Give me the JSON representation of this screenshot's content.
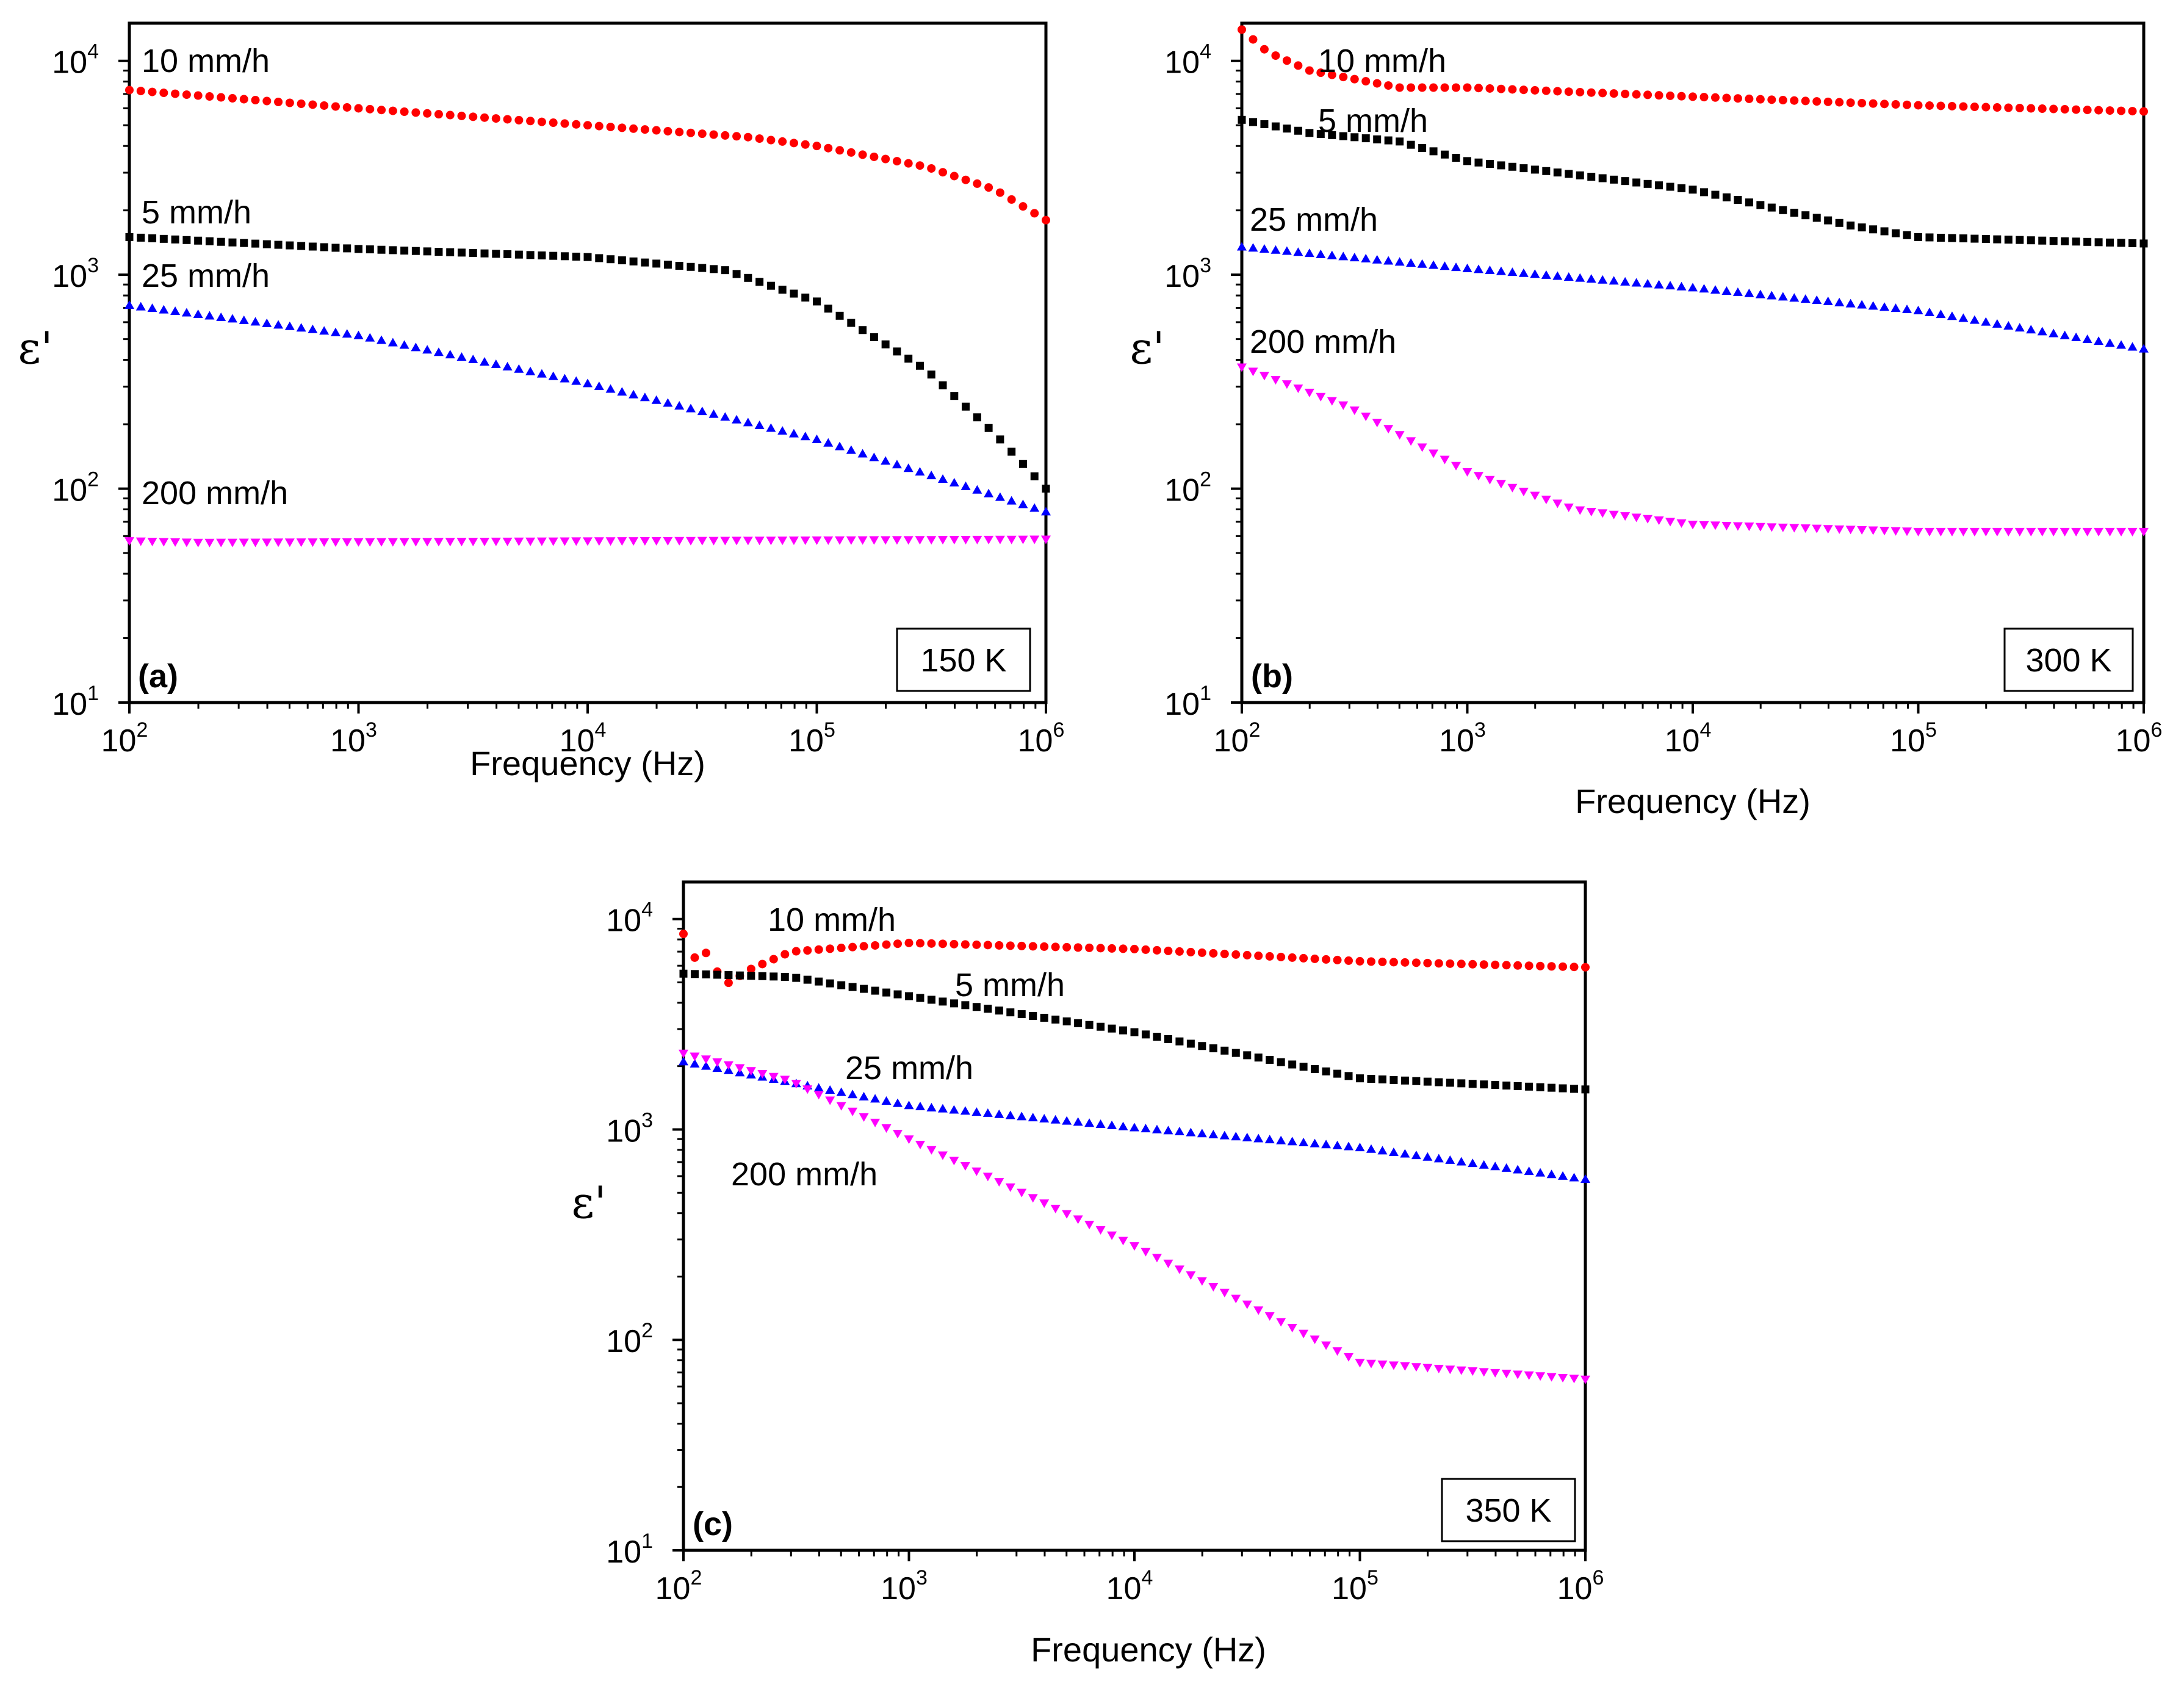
{
  "chart_data": [
    {
      "type": "scatter",
      "panel_label": "(a)",
      "temperature": "150 K",
      "xlabel": "Frequency (Hz)",
      "ylabel": "ε'",
      "xscale": "log",
      "yscale": "log",
      "xlim": [
        100,
        1000000
      ],
      "ylim": [
        10,
        15000
      ],
      "x_ticks": [
        {
          "base": "10",
          "exp": "2"
        },
        {
          "base": "10",
          "exp": "3"
        },
        {
          "base": "10",
          "exp": "4"
        },
        {
          "base": "10",
          "exp": "5"
        },
        {
          "base": "10",
          "exp": "6"
        }
      ],
      "y_ticks": [
        {
          "base": "10",
          "exp": "1"
        },
        {
          "base": "10",
          "exp": "2"
        },
        {
          "base": "10",
          "exp": "3"
        },
        {
          "base": "10",
          "exp": "4"
        }
      ],
      "series": [
        {
          "name": "10 mm/h",
          "color": "#ff0000",
          "marker": "circle",
          "points": [
            [
              100,
              7300
            ],
            [
              1000,
              6000
            ],
            [
              10000,
              5000
            ],
            [
              50000,
              4400
            ],
            [
              100000,
              4000
            ],
            [
              300000,
              3200
            ],
            [
              600000,
              2500
            ],
            [
              1000000,
              1800
            ]
          ]
        },
        {
          "name": "5 mm/h",
          "color": "#000000",
          "marker": "square",
          "points": [
            [
              100,
              1500
            ],
            [
              1000,
              1320
            ],
            [
              10000,
              1210
            ],
            [
              40000,
              1050
            ],
            [
              100000,
              750
            ],
            [
              300000,
              360
            ],
            [
              600000,
              180
            ],
            [
              1000000,
              100
            ]
          ]
        },
        {
          "name": "25 mm/h",
          "color": "#0000ff",
          "marker": "triangle-up",
          "points": [
            [
              100,
              720
            ],
            [
              1000,
              520
            ],
            [
              10000,
              310
            ],
            [
              100000,
              170
            ],
            [
              1000000,
              78
            ]
          ]
        },
        {
          "name": "200 mm/h",
          "color": "#ff00ff",
          "marker": "triangle-down",
          "points": [
            [
              100,
              57
            ],
            [
              200,
              56
            ],
            [
              1000000,
              58
            ]
          ]
        }
      ],
      "series_labels": [
        "10 mm/h",
        "5 mm/h",
        "25 mm/h",
        "200 mm/h"
      ]
    },
    {
      "type": "scatter",
      "panel_label": "(b)",
      "temperature": "300 K",
      "xlabel": "Frequency (Hz)",
      "ylabel": "ε'",
      "xscale": "log",
      "yscale": "log",
      "xlim": [
        100,
        1000000
      ],
      "ylim": [
        10,
        15000
      ],
      "x_ticks": [
        {
          "base": "10",
          "exp": "2"
        },
        {
          "base": "10",
          "exp": "3"
        },
        {
          "base": "10",
          "exp": "4"
        },
        {
          "base": "10",
          "exp": "5"
        },
        {
          "base": "10",
          "exp": "6"
        }
      ],
      "y_ticks": [
        {
          "base": "10",
          "exp": "1"
        },
        {
          "base": "10",
          "exp": "2"
        },
        {
          "base": "10",
          "exp": "3"
        },
        {
          "base": "10",
          "exp": "4"
        }
      ],
      "series": [
        {
          "name": "10 mm/h",
          "color": "#ff0000",
          "marker": "circle",
          "points": [
            [
              100,
              14000
            ],
            [
              130,
              11000
            ],
            [
              200,
              9000
            ],
            [
              500,
              7500
            ],
            [
              1000,
              7500
            ],
            [
              10000,
              6800
            ],
            [
              100000,
              6200
            ],
            [
              1000000,
              5800
            ]
          ]
        },
        {
          "name": "5 mm/h",
          "color": "#000000",
          "marker": "square",
          "points": [
            [
              100,
              5300
            ],
            [
              200,
              4600
            ],
            [
              500,
              4200
            ],
            [
              1000,
              3400
            ],
            [
              10000,
              2500
            ],
            [
              50000,
              1700
            ],
            [
              100000,
              1500
            ],
            [
              1000000,
              1400
            ]
          ]
        },
        {
          "name": "25 mm/h",
          "color": "#0000ff",
          "marker": "triangle-up",
          "points": [
            [
              100,
              1350
            ],
            [
              1000,
              1070
            ],
            [
              10000,
              870
            ],
            [
              100000,
              680
            ],
            [
              1000000,
              450
            ]
          ]
        },
        {
          "name": "200 mm/h",
          "color": "#ff00ff",
          "marker": "triangle-down",
          "points": [
            [
              100,
              370
            ],
            [
              300,
              240
            ],
            [
              1000,
              120
            ],
            [
              3000,
              80
            ],
            [
              10000,
              68
            ],
            [
              100000,
              63
            ],
            [
              1000000,
              63
            ]
          ]
        }
      ],
      "series_labels": [
        "10 mm/h",
        "5 mm/h",
        "25 mm/h",
        "200 mm/h"
      ]
    },
    {
      "type": "scatter",
      "panel_label": "(c)",
      "temperature": "350 K",
      "xlabel": "Frequency (Hz)",
      "ylabel": "ε'",
      "xscale": "log",
      "yscale": "log",
      "xlim": [
        100,
        1000000
      ],
      "ylim": [
        10,
        15000
      ],
      "x_ticks": [
        {
          "base": "10",
          "exp": "2"
        },
        {
          "base": "10",
          "exp": "3"
        },
        {
          "base": "10",
          "exp": "4"
        },
        {
          "base": "10",
          "exp": "5"
        },
        {
          "base": "10",
          "exp": "6"
        }
      ],
      "y_ticks": [
        {
          "base": "10",
          "exp": "1"
        },
        {
          "base": "10",
          "exp": "2"
        },
        {
          "base": "10",
          "exp": "3"
        },
        {
          "base": "10",
          "exp": "4"
        }
      ],
      "series": [
        {
          "name": "10 mm/h",
          "color": "#ff0000",
          "marker": "circle",
          "points": [
            [
              100,
              8500
            ],
            [
              110,
              6500
            ],
            [
              130,
              7000
            ],
            [
              150,
              4800
            ],
            [
              200,
              5800
            ],
            [
              300,
              7000
            ],
            [
              1000,
              7700
            ],
            [
              10000,
              7200
            ],
            [
              100000,
              6300
            ],
            [
              1000000,
              5900
            ]
          ]
        },
        {
          "name": "5 mm/h",
          "color": "#000000",
          "marker": "square",
          "points": [
            [
              100,
              5500
            ],
            [
              300,
              5300
            ],
            [
              1000,
              4300
            ],
            [
              10000,
              2900
            ],
            [
              100000,
              1750
            ],
            [
              1000000,
              1550
            ]
          ]
        },
        {
          "name": "25 mm/h",
          "color": "#0000ff",
          "marker": "triangle-up",
          "points": [
            [
              100,
              2100
            ],
            [
              1000,
              1300
            ],
            [
              10000,
              1020
            ],
            [
              100000,
              820
            ],
            [
              1000000,
              580
            ]
          ]
        },
        {
          "name": "200 mm/h",
          "color": "#ff00ff",
          "marker": "triangle-down",
          "points": [
            [
              100,
              2300
            ],
            [
              300,
              1700
            ],
            [
              1000,
              900
            ],
            [
              10000,
              280
            ],
            [
              100000,
              78
            ],
            [
              1000000,
              65
            ]
          ]
        }
      ],
      "series_labels": [
        "10 mm/h",
        "5 mm/h",
        "25 mm/h",
        "200 mm/h"
      ]
    }
  ]
}
